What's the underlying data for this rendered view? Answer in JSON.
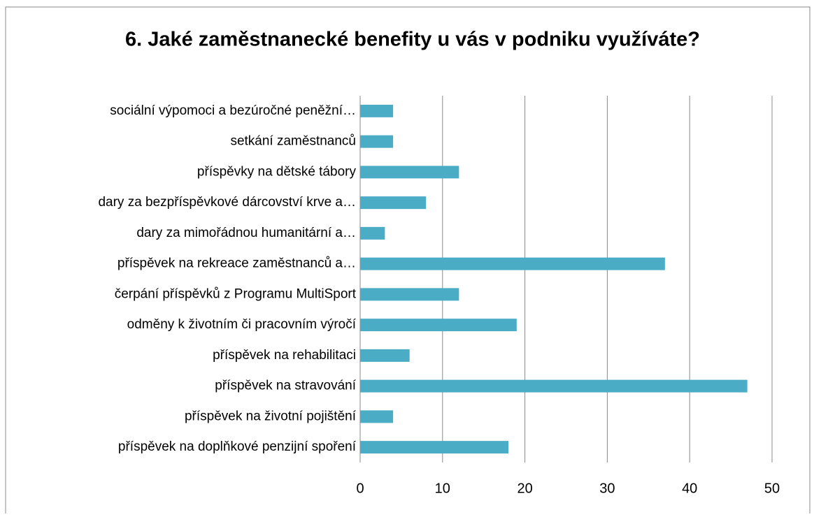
{
  "chart_data": {
    "type": "bar",
    "orientation": "horizontal",
    "title": "6. Jaké zaměstnanecké benefity u vás v podniku využíváte?",
    "categories": [
      "sociální výpomoci a bezúročné peněžní…",
      "setkání zaměstnanců",
      "příspěvky na dětské tábory",
      "dary za bezpříspěvkové dárcovství krve a…",
      "dary za mimořádnou humanitární a…",
      "příspěvek na rekreace zaměstnanců a…",
      "čerpání příspěvků z Programu MultiSport",
      "odměny k životním či pracovním výročí",
      "příspěvek na rehabilitaci",
      "příspěvek na stravování",
      "příspěvek na životní pojištění",
      "příspěvek na doplňkové penzijní spoření"
    ],
    "values": [
      4,
      4,
      12,
      8,
      3,
      37,
      12,
      19,
      6,
      47,
      4,
      18
    ],
    "color": "#4bacc6",
    "xlim": [
      0,
      50
    ],
    "xticks": [
      0,
      10,
      20,
      30,
      40,
      50
    ],
    "grid": true
  }
}
